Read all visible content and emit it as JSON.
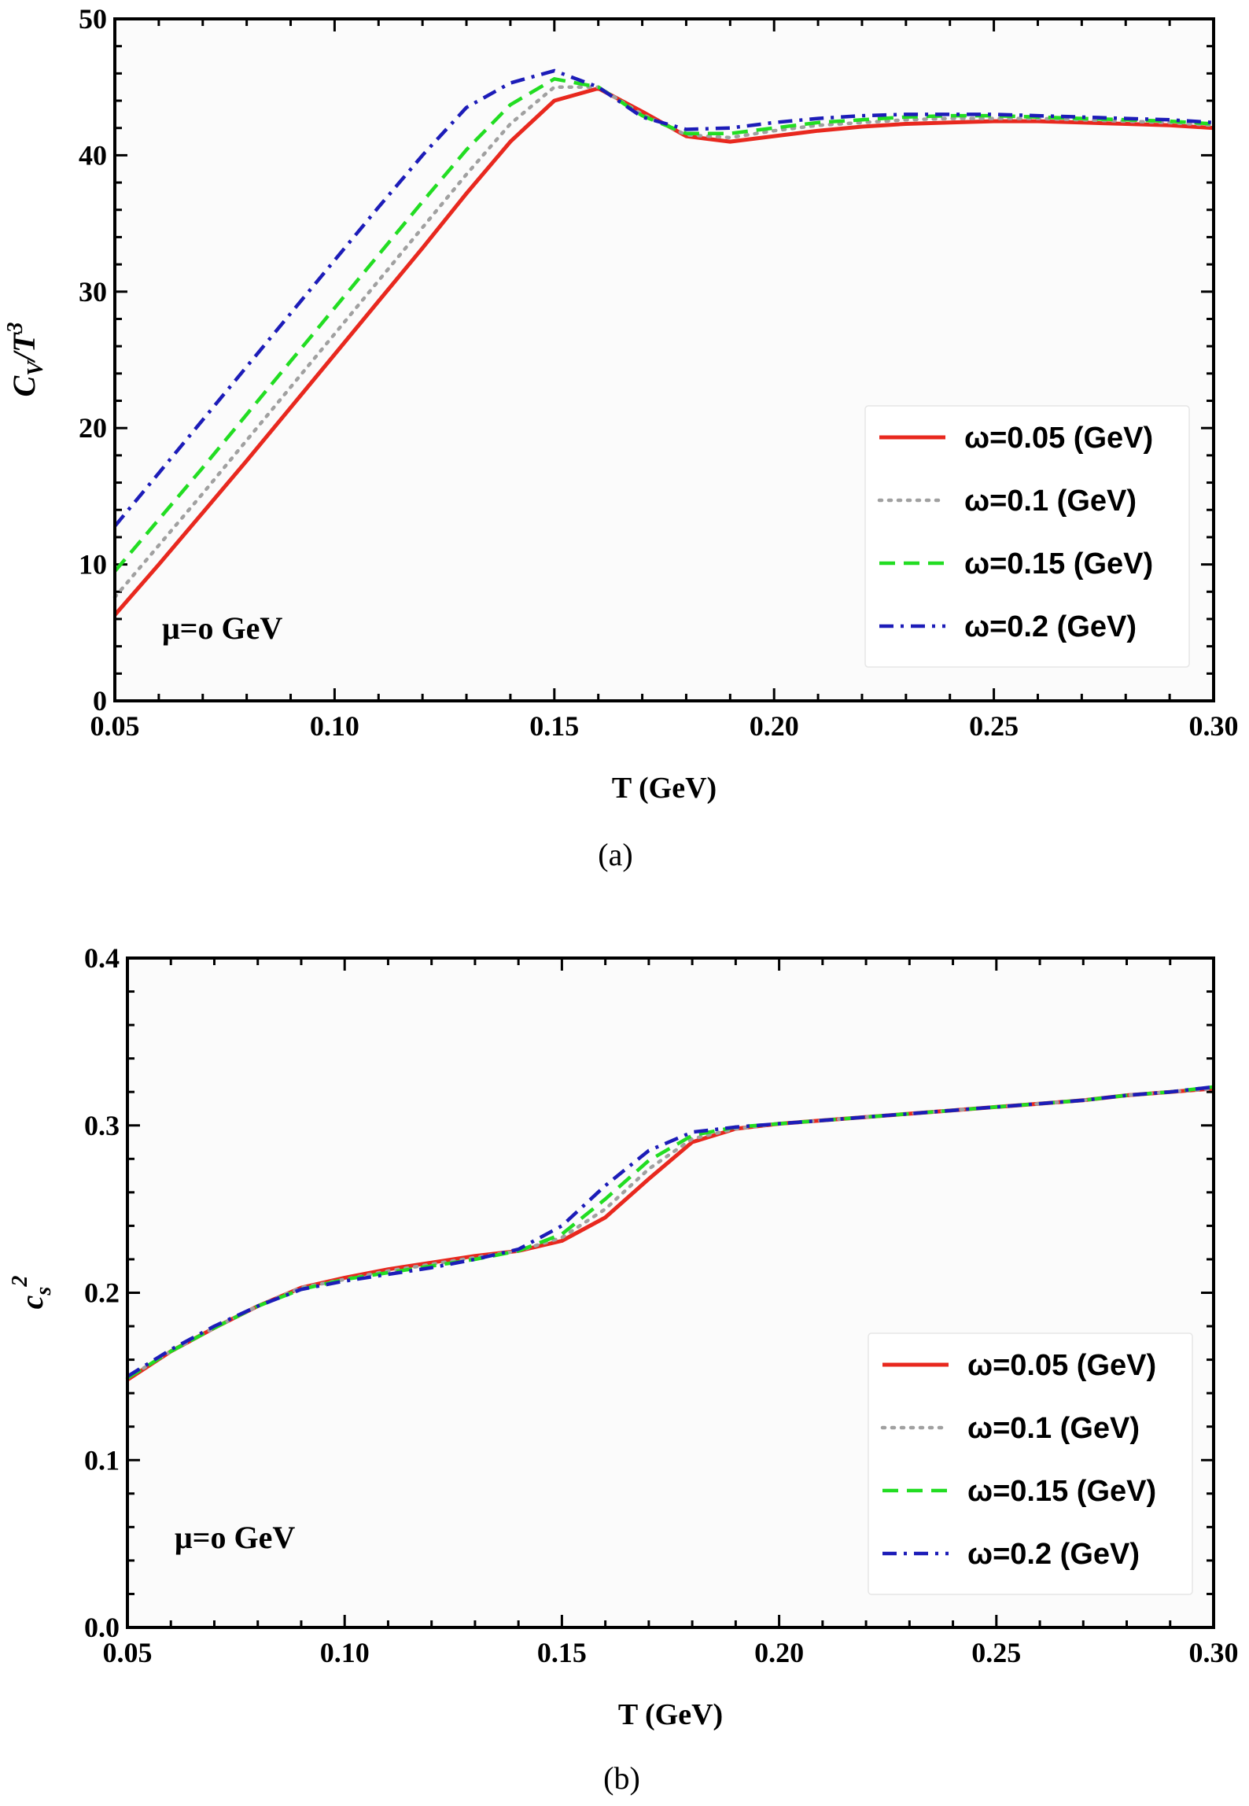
{
  "chart_data": [
    {
      "type": "line",
      "caption": "(a)",
      "xlabel": "T (GeV)",
      "ylabel": "C_V/T^3",
      "xlim": [
        0.05,
        0.3
      ],
      "ylim": [
        0,
        50
      ],
      "xticks": [
        "0.05",
        "0.10",
        "0.15",
        "0.20",
        "0.25",
        "0.30"
      ],
      "yticks": [
        "0",
        "10",
        "20",
        "30",
        "40",
        "50"
      ],
      "annotation": "μ=o GeV",
      "legend_position": "center-right",
      "x": [
        0.05,
        0.06,
        0.07,
        0.08,
        0.09,
        0.1,
        0.11,
        0.12,
        0.13,
        0.14,
        0.15,
        0.16,
        0.17,
        0.18,
        0.19,
        0.2,
        0.21,
        0.22,
        0.23,
        0.24,
        0.25,
        0.26,
        0.27,
        0.28,
        0.29,
        0.3
      ],
      "series": [
        {
          "name": "ω=0.05 (GeV)",
          "color": "#e8281e",
          "dash": "solid",
          "values": [
            6.3,
            10.0,
            13.8,
            17.6,
            21.5,
            25.4,
            29.3,
            33.2,
            37.2,
            41.0,
            44.0,
            44.9,
            43.2,
            41.4,
            41.0,
            41.4,
            41.8,
            42.1,
            42.3,
            42.4,
            42.5,
            42.5,
            42.4,
            42.3,
            42.2,
            42.0
          ]
        },
        {
          "name": "ω=0.1 (GeV)",
          "color": "#a0a0a0",
          "dash": "dotted",
          "values": [
            7.6,
            11.4,
            15.2,
            19.1,
            23.0,
            26.9,
            30.8,
            34.7,
            38.6,
            42.3,
            45.0,
            45.0,
            43.0,
            41.5,
            41.3,
            41.8,
            42.2,
            42.4,
            42.6,
            42.7,
            42.7,
            42.7,
            42.6,
            42.5,
            42.4,
            42.2
          ]
        },
        {
          "name": "ω=0.15 (GeV)",
          "color": "#22dd22",
          "dash": "dashed",
          "values": [
            9.5,
            13.3,
            17.1,
            21.0,
            24.9,
            28.8,
            32.7,
            36.6,
            40.4,
            43.7,
            45.6,
            45.0,
            42.9,
            41.6,
            41.6,
            42.0,
            42.4,
            42.6,
            42.8,
            42.9,
            42.9,
            42.8,
            42.7,
            42.6,
            42.5,
            42.3
          ]
        },
        {
          "name": "ω=0.2 (GeV)",
          "color": "#1c1cb8",
          "dash": "dashdot",
          "values": [
            12.8,
            16.7,
            20.6,
            24.5,
            28.4,
            32.3,
            36.2,
            40.0,
            43.5,
            45.3,
            46.2,
            45.0,
            42.8,
            41.9,
            42.0,
            42.4,
            42.7,
            42.9,
            43.0,
            43.0,
            43.0,
            42.9,
            42.8,
            42.7,
            42.6,
            42.4
          ]
        }
      ]
    },
    {
      "type": "line",
      "caption": "(b)",
      "xlabel": "T (GeV)",
      "ylabel": "c_s^2",
      "xlim": [
        0.05,
        0.3
      ],
      "ylim": [
        0.0,
        0.4
      ],
      "xticks": [
        "0.05",
        "0.10",
        "0.15",
        "0.20",
        "0.25",
        "0.30"
      ],
      "yticks": [
        "0.0",
        "0.1",
        "0.2",
        "0.3",
        "0.4"
      ],
      "annotation": "μ=o GeV",
      "legend_position": "bottom-right",
      "x": [
        0.05,
        0.06,
        0.07,
        0.08,
        0.09,
        0.1,
        0.11,
        0.12,
        0.13,
        0.14,
        0.15,
        0.16,
        0.17,
        0.18,
        0.19,
        0.2,
        0.21,
        0.22,
        0.23,
        0.24,
        0.25,
        0.26,
        0.27,
        0.28,
        0.29,
        0.3
      ],
      "series": [
        {
          "name": "ω=0.05 (GeV)",
          "color": "#e8281e",
          "dash": "solid",
          "values": [
            0.148,
            0.165,
            0.179,
            0.192,
            0.203,
            0.209,
            0.214,
            0.218,
            0.222,
            0.225,
            0.231,
            0.245,
            0.268,
            0.29,
            0.298,
            0.301,
            0.303,
            0.305,
            0.307,
            0.309,
            0.311,
            0.313,
            0.315,
            0.318,
            0.32,
            0.322
          ]
        },
        {
          "name": "ω=0.1 (GeV)",
          "color": "#a0a0a0",
          "dash": "dotted",
          "values": [
            0.149,
            0.165,
            0.179,
            0.192,
            0.203,
            0.208,
            0.213,
            0.217,
            0.221,
            0.225,
            0.233,
            0.25,
            0.274,
            0.292,
            0.298,
            0.301,
            0.303,
            0.305,
            0.307,
            0.309,
            0.311,
            0.313,
            0.315,
            0.318,
            0.32,
            0.322
          ]
        },
        {
          "name": "ω=0.15 (GeV)",
          "color": "#22dd22",
          "dash": "dashed",
          "values": [
            0.149,
            0.165,
            0.179,
            0.192,
            0.202,
            0.208,
            0.212,
            0.216,
            0.22,
            0.225,
            0.235,
            0.256,
            0.279,
            0.294,
            0.299,
            0.301,
            0.303,
            0.305,
            0.307,
            0.309,
            0.311,
            0.313,
            0.315,
            0.318,
            0.32,
            0.323
          ]
        },
        {
          "name": "ω=0.2 (GeV)",
          "color": "#1c1cb8",
          "dash": "dashdot",
          "values": [
            0.15,
            0.166,
            0.18,
            0.192,
            0.202,
            0.207,
            0.211,
            0.215,
            0.22,
            0.226,
            0.24,
            0.264,
            0.285,
            0.296,
            0.299,
            0.301,
            0.303,
            0.305,
            0.307,
            0.309,
            0.311,
            0.313,
            0.315,
            0.318,
            0.32,
            0.323
          ]
        }
      ]
    }
  ]
}
